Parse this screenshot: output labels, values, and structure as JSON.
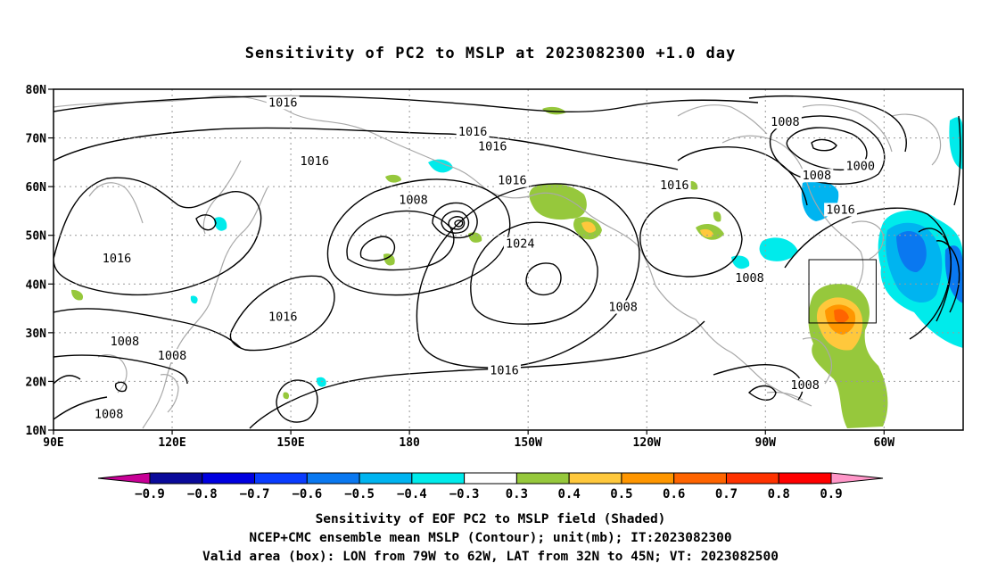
{
  "title": "Sensitivity of PC2 to MSLP at 2023082300 +1.0 day",
  "map": {
    "lat_ticks": [
      "80N",
      "70N",
      "60N",
      "50N",
      "40N",
      "30N",
      "20N",
      "10N"
    ],
    "lon_ticks": [
      "90E",
      "120E",
      "150E",
      "180",
      "150W",
      "120W",
      "90W",
      "60W"
    ],
    "lon_range": [
      90,
      320
    ],
    "lat_range": [
      10,
      80
    ]
  },
  "contour_labels": [
    {
      "text": "1016",
      "lon": 148,
      "lat": 77
    },
    {
      "text": "1016",
      "lon": 196,
      "lat": 71
    },
    {
      "text": "1016",
      "lon": 201,
      "lat": 68
    },
    {
      "text": "1016",
      "lon": 156,
      "lat": 65
    },
    {
      "text": "1008",
      "lon": 275,
      "lat": 73
    },
    {
      "text": "1000",
      "lon": 294,
      "lat": 64
    },
    {
      "text": "1008",
      "lon": 283,
      "lat": 62
    },
    {
      "text": "1016",
      "lon": 247,
      "lat": 60
    },
    {
      "text": "1016",
      "lon": 206,
      "lat": 61
    },
    {
      "text": "1008",
      "lon": 181,
      "lat": 57
    },
    {
      "text": "1016",
      "lon": 289,
      "lat": 55
    },
    {
      "text": "1024",
      "lon": 208,
      "lat": 48
    },
    {
      "text": "1016",
      "lon": 106,
      "lat": 45
    },
    {
      "text": "1008",
      "lon": 266,
      "lat": 41
    },
    {
      "text": "1016",
      "lon": 148,
      "lat": 33
    },
    {
      "text": "1008",
      "lon": 234,
      "lat": 35
    },
    {
      "text": "1008",
      "lon": 108,
      "lat": 28
    },
    {
      "text": "1008",
      "lon": 120,
      "lat": 25
    },
    {
      "text": "1016",
      "lon": 204,
      "lat": 22
    },
    {
      "text": "1008",
      "lon": 280,
      "lat": 19
    },
    {
      "text": "1008",
      "lon": 104,
      "lat": 13
    }
  ],
  "valid_box": {
    "lon_from": 281,
    "lon_to": 298,
    "lat_from": 32,
    "lat_to": 45
  },
  "colorbar": {
    "labels": [
      "-0.9",
      "-0.8",
      "-0.7",
      "-0.6",
      "-0.5",
      "-0.4",
      "-0.3",
      "0.3",
      "0.4",
      "0.5",
      "0.6",
      "0.7",
      "0.8",
      "0.9"
    ],
    "colors": [
      "#0a0a9a",
      "#0000e0",
      "#0a3cff",
      "#0a78f0",
      "#00b4f0",
      "#00ebeb",
      "#ffffff",
      "#96c83c",
      "#ffc83c",
      "#ff9600",
      "#ff6400",
      "#ff3200",
      "#ff0000"
    ],
    "left_arrow_color": "#c80096",
    "right_arrow_color": "#ff96c8"
  },
  "captions": [
    "Sensitivity of EOF PC2 to MSLP field (Shaded)",
    "NCEP+CMC ensemble mean MSLP (Contour); unit(mb); IT:2023082300",
    "Valid area (box): LON from 79W to 62W, LAT from 32N to 45N; VT: 2023082500"
  ]
}
